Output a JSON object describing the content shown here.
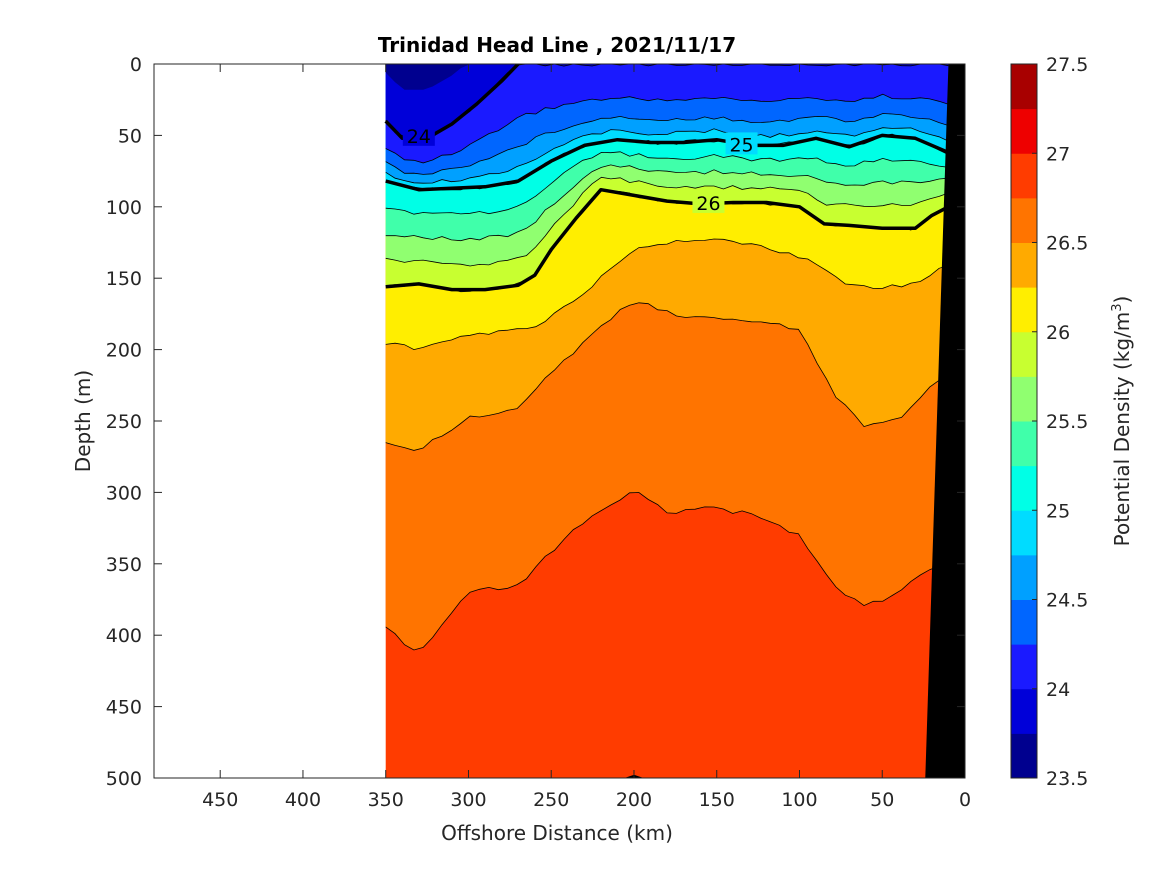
{
  "chart_data": {
    "type": "contour",
    "title": "Trinidad Head Line , 2021/11/17",
    "xlabel": "Offshore Distance (km)",
    "ylabel": "Depth (m)",
    "colorbar_label": "Potential Density (kg/m³)",
    "colorbar_label_main": "Potential Density (kg/m",
    "colorbar_label_sup": "3",
    "colorbar_label_close": ")",
    "xlim": [
      0,
      490
    ],
    "x_reversed": true,
    "ylim": [
      0,
      500
    ],
    "y_reversed": true,
    "clim": [
      23.5,
      27.5
    ],
    "level_step": 0.25,
    "xticks": [
      0,
      50,
      100,
      150,
      200,
      250,
      300,
      350,
      400,
      450
    ],
    "xtick_labels": [
      "0",
      "50",
      "100",
      "150",
      "200",
      "250",
      "300",
      "350",
      "400",
      "450"
    ],
    "yticks": [
      0,
      50,
      100,
      150,
      200,
      250,
      300,
      350,
      400,
      450,
      500
    ],
    "ytick_labels": [
      "0",
      "50",
      "100",
      "150",
      "200",
      "250",
      "300",
      "350",
      "400",
      "450",
      "500"
    ],
    "colorbar_ticks": [
      23.5,
      24,
      24.5,
      25,
      25.5,
      26,
      26.5,
      27,
      27.5
    ],
    "colorbar_tick_labels": [
      "23.5",
      "24",
      "24.5",
      "25",
      "25.5",
      "26",
      "26.5",
      "27",
      "27.5"
    ],
    "colormap": [
      "#00008f",
      "#0000d9",
      "#1a1aff",
      "#0066ff",
      "#00a0ff",
      "#00dcff",
      "#00ffe6",
      "#40ffaa",
      "#90ff70",
      "#c8ff30",
      "#ffee00",
      "#ffaa00",
      "#ff7400",
      "#ff3c00",
      "#ee0000",
      "#a80000"
    ],
    "data_extent_km": [
      10,
      350
    ],
    "bathymetry_color": "#000000",
    "bold_contours": [
      {
        "level": 24,
        "label": "24",
        "label_x": 330,
        "label_depth": 51,
        "x": [
          350,
          340,
          325,
          310,
          295,
          280,
          270
        ],
        "depth": [
          40,
          52,
          52,
          42,
          28,
          12,
          0
        ]
      },
      {
        "level": 25,
        "label": "25",
        "label_x": 135,
        "label_depth": 57,
        "x": [
          350,
          330,
          310,
          290,
          270,
          250,
          230,
          210,
          190,
          170,
          150,
          130,
          110,
          90,
          70,
          50,
          30,
          10
        ],
        "depth": [
          82,
          88,
          87,
          86,
          82,
          68,
          57,
          53,
          55,
          55,
          53,
          57,
          57,
          52,
          58,
          50,
          52,
          62
        ]
      },
      {
        "level": 26,
        "label": "26",
        "label_x": 155,
        "label_depth": 98,
        "x": [
          350,
          330,
          310,
          290,
          270,
          260,
          250,
          235,
          220,
          200,
          180,
          160,
          140,
          120,
          100,
          85,
          70,
          50,
          30,
          20,
          10
        ],
        "depth": [
          156,
          154,
          158,
          158,
          155,
          148,
          130,
          108,
          88,
          92,
          96,
          98,
          97,
          97,
          100,
          112,
          113,
          115,
          115,
          106,
          100
        ]
      },
      {
        "level": 26,
        "label": "",
        "label_x": 0,
        "label_depth": 0,
        "x": [
          205,
          200,
          195
        ],
        "depth": [
          501,
          499,
          501
        ]
      }
    ],
    "bottom_depth": [
      {
        "x": 10,
        "depth": 0
      },
      {
        "x": 24,
        "depth": 500
      }
    ]
  }
}
